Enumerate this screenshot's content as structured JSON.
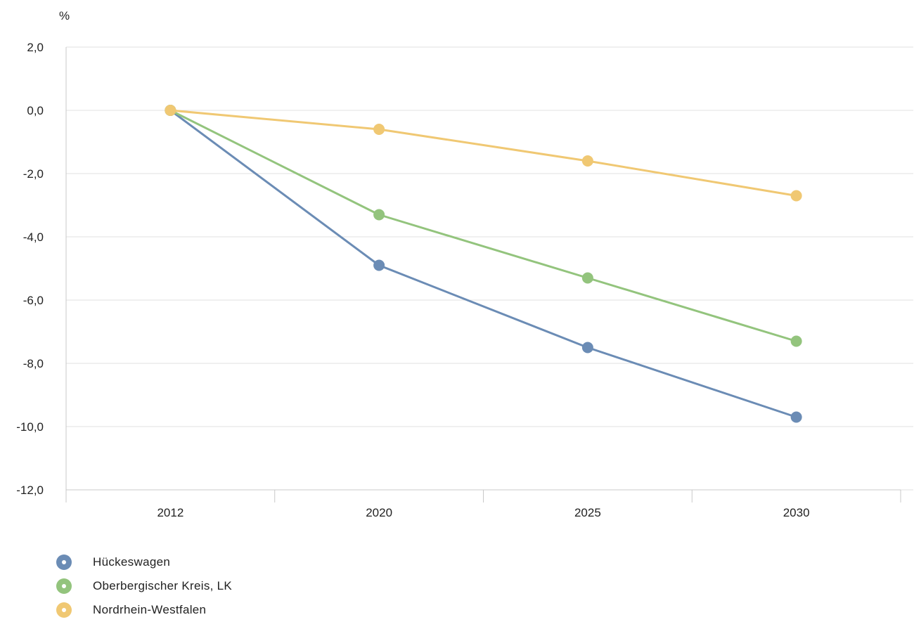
{
  "chart_data": {
    "type": "line",
    "unit_label": "%",
    "categories": [
      "2012",
      "2020",
      "2025",
      "2030"
    ],
    "ylim": [
      -12,
      2
    ],
    "yticks": [
      2,
      0,
      -2,
      -4,
      -6,
      -8,
      -10,
      -12
    ],
    "ytick_labels": [
      "2,0",
      "0,0",
      "-2,0",
      "-4,0",
      "-6,0",
      "-8,0",
      "-10,0",
      "-12,0"
    ],
    "grid": true,
    "legend_position": "bottom-left",
    "series": [
      {
        "name": "Hückeswagen",
        "color": "#6b8cb5",
        "values": [
          0.0,
          -4.9,
          -7.5,
          -9.7
        ]
      },
      {
        "name": "Oberbergischer Kreis, LK",
        "color": "#93c47d",
        "values": [
          0.0,
          -3.3,
          -5.3,
          -7.3
        ]
      },
      {
        "name": "Nordrhein-Westfalen",
        "color": "#f0c873",
        "values": [
          0.0,
          -0.6,
          -1.6,
          -2.7
        ]
      }
    ]
  }
}
